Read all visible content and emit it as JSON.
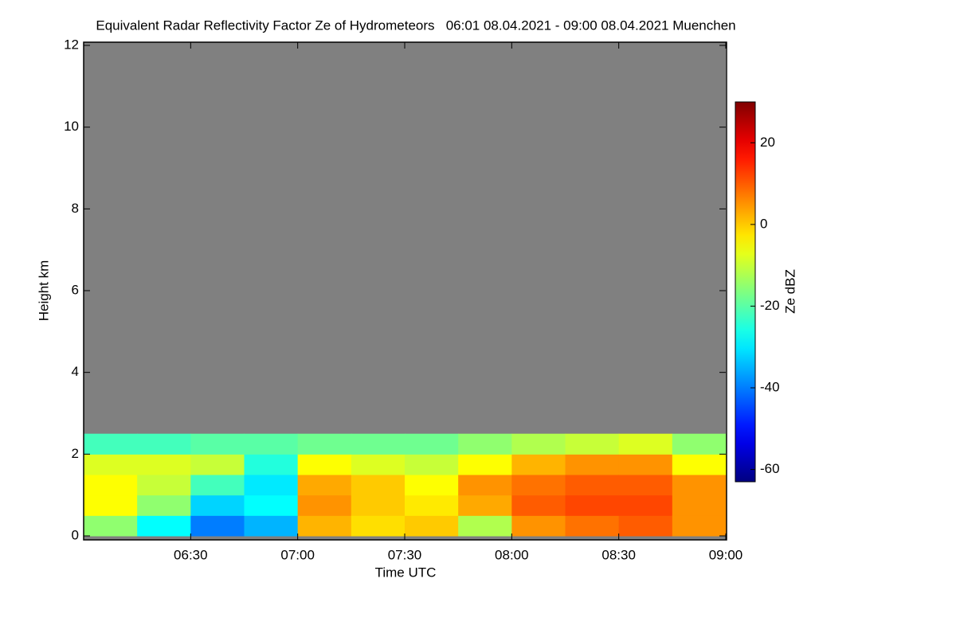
{
  "chart_data": {
    "type": "heatmap",
    "title": "Equivalent Radar Reflectivity Factor Ze of Hydrometeors   06:01 08.04.2021 - 09:00 08.04.2021 Muenchen",
    "x_label": "Time UTC",
    "y_label": "Height km",
    "colorbar_label": "Ze dBZ",
    "x_bins": [
      6,
      6.25,
      6.5,
      6.75,
      7,
      7.25,
      7.5,
      7.75,
      8,
      8.25,
      8.5,
      8.75,
      9
    ],
    "y_bins": [
      0,
      0.5,
      1,
      1.5,
      2,
      2.5
    ],
    "z": [
      [
        -15,
        -5,
        -5,
        -8,
        -22
      ],
      [
        -28,
        -15,
        -10,
        -8,
        -22
      ],
      [
        -40,
        -32,
        -22,
        -10,
        -20
      ],
      [
        -35,
        -28,
        -30,
        -25,
        -20
      ],
      [
        2,
        5,
        3,
        -5,
        -18
      ],
      [
        -2,
        0,
        0,
        -8,
        -18
      ],
      [
        0,
        -3,
        -5,
        -10,
        -18
      ],
      [
        -12,
        3,
        5,
        -5,
        -15
      ],
      [
        5,
        10,
        8,
        2,
        -12
      ],
      [
        8,
        12,
        10,
        5,
        -10
      ],
      [
        10,
        12,
        10,
        5,
        -8
      ],
      [
        5,
        5,
        5,
        -5,
        -15
      ]
    ],
    "xlim": [
      6,
      9
    ],
    "ylim": [
      0,
      12
    ],
    "xticks": [
      {
        "value": 6.5,
        "label": "06:30"
      },
      {
        "value": 7,
        "label": "07:00"
      },
      {
        "value": 7.5,
        "label": "07:30"
      },
      {
        "value": 8,
        "label": "08:00"
      },
      {
        "value": 8.5,
        "label": "08:30"
      },
      {
        "value": 9,
        "label": "09:00"
      }
    ],
    "yticks": [
      0,
      2,
      4,
      6,
      8,
      10,
      12
    ],
    "clim": [
      -63,
      30
    ],
    "cticks": [
      -60,
      -40,
      -20,
      0,
      20
    ],
    "colormap": "jet",
    "background_color": "#808080"
  }
}
